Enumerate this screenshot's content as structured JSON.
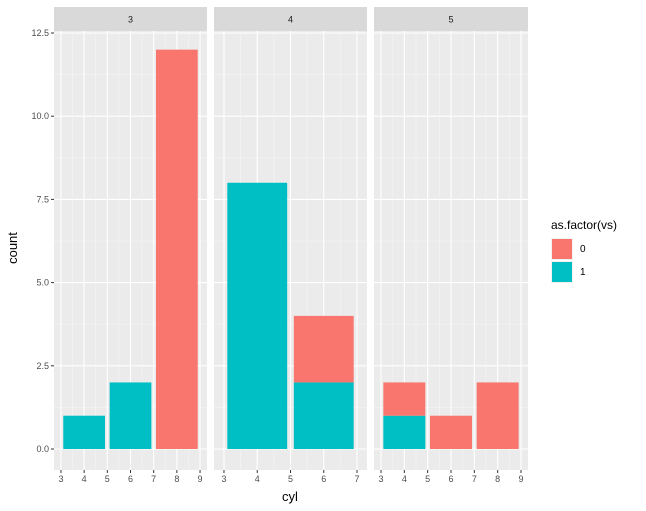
{
  "chart_data": {
    "type": "bar",
    "stacked": true,
    "facet_by": "gear",
    "xlabel": "cyl",
    "ylabel": "count",
    "ylim": [
      0,
      12.5
    ],
    "grid": true,
    "y_ticks": [
      {
        "value": 0,
        "label": "0.0"
      },
      {
        "value": 2.5,
        "label": "2.5"
      },
      {
        "value": 5,
        "label": "5.0"
      },
      {
        "value": 7.5,
        "label": "7.5"
      },
      {
        "value": 10,
        "label": "10.0"
      },
      {
        "value": 12.5,
        "label": "12.5"
      }
    ],
    "legend": {
      "title": "as.factor(vs)",
      "position": "right",
      "entries": [
        {
          "label": "0",
          "color": "#F8766D"
        },
        {
          "label": "1",
          "color": "#00BFC4"
        }
      ]
    },
    "facets": [
      {
        "strip": "3",
        "xlim": [
          3,
          9
        ],
        "x_ticks": [
          "3",
          "4",
          "5",
          "6",
          "7",
          "8",
          "9"
        ],
        "x_tick_values": [
          3,
          4,
          5,
          6,
          7,
          8,
          9
        ],
        "bars": [
          {
            "x": 4,
            "width": 1.8,
            "stack": [
              {
                "vs": "1",
                "count": 1
              }
            ]
          },
          {
            "x": 6,
            "width": 1.8,
            "stack": [
              {
                "vs": "1",
                "count": 2
              }
            ]
          },
          {
            "x": 8,
            "width": 1.8,
            "stack": [
              {
                "vs": "0",
                "count": 12
              }
            ]
          }
        ]
      },
      {
        "strip": "4",
        "xlim": [
          3,
          7
        ],
        "x_ticks": [
          "3",
          "4",
          "5",
          "6",
          "7"
        ],
        "x_tick_values": [
          3,
          4,
          5,
          6,
          7
        ],
        "bars": [
          {
            "x": 4,
            "width": 1.8,
            "stack": [
              {
                "vs": "1",
                "count": 8
              }
            ]
          },
          {
            "x": 6,
            "width": 1.8,
            "stack": [
              {
                "vs": "1",
                "count": 2
              },
              {
                "vs": "0",
                "count": 2
              }
            ]
          }
        ]
      },
      {
        "strip": "5",
        "xlim": [
          3,
          9
        ],
        "x_ticks": [
          "3",
          "4",
          "5",
          "6",
          "7",
          "8",
          "9"
        ],
        "x_tick_values": [
          3,
          4,
          5,
          6,
          7,
          8,
          9
        ],
        "bars": [
          {
            "x": 4,
            "width": 1.8,
            "stack": [
              {
                "vs": "1",
                "count": 1
              },
              {
                "vs": "0",
                "count": 1
              }
            ]
          },
          {
            "x": 6,
            "width": 1.8,
            "stack": [
              {
                "vs": "0",
                "count": 1
              }
            ]
          },
          {
            "x": 8,
            "width": 1.8,
            "stack": [
              {
                "vs": "0",
                "count": 2
              }
            ]
          }
        ]
      }
    ]
  }
}
